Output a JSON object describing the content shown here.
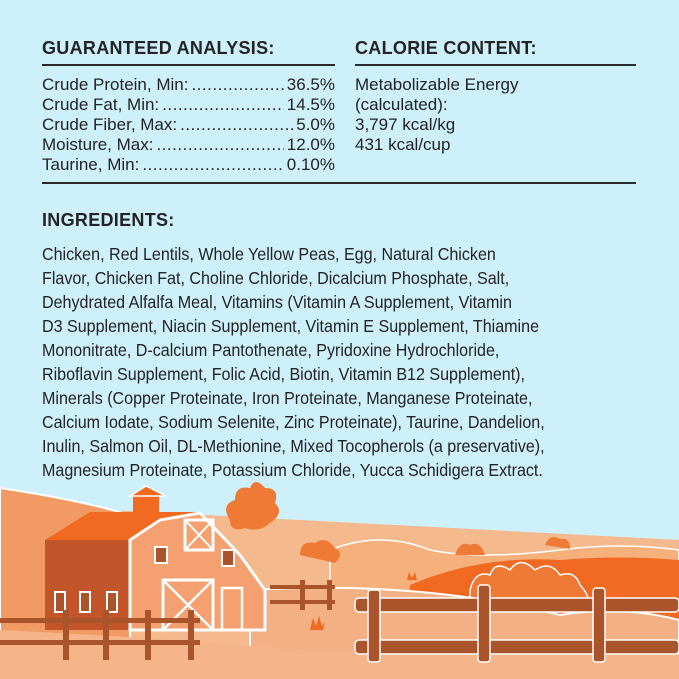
{
  "guaranteed_analysis": {
    "title": "GUARANTEED ANALYSIS:",
    "rows": [
      {
        "label": "Crude Protein, Min:",
        "value": "36.5%"
      },
      {
        "label": "Crude Fat, Min:",
        "value": "14.5%"
      },
      {
        "label": "Crude Fiber, Max:",
        "value": "5.0%"
      },
      {
        "label": "Moisture, Max:",
        "value": "12.0%"
      },
      {
        "label": "Taurine, Min:",
        "value": "0.10%"
      }
    ]
  },
  "calorie_content": {
    "title": "CALORIE CONTENT:",
    "lines": [
      "Metabolizable Energy",
      "(calculated):",
      "3,797 kcal/kg",
      "431 kcal/cup"
    ]
  },
  "ingredients": {
    "title": "INGREDIENTS:",
    "lines": [
      "Chicken, Red Lentils, Whole Yellow Peas, Egg, Natural Chicken",
      "Flavor, Chicken Fat, Choline Chloride, Dicalcium Phosphate, Salt,",
      "Dehydrated Alfalfa Meal, Vitamins (Vitamin A Supplement, Vitamin",
      "D3 Supplement, Niacin Supplement, Vitamin E Supplement, Thiamine",
      "Mononitrate, D-calcium Pantothenate, Pyridoxine Hydrochloride,",
      "Riboflavin Supplement, Folic Acid, Biotin, Vitamin B12 Supplement),",
      "Minerals (Copper Proteinate, Iron Proteinate, Manganese Proteinate,",
      "Calcium Iodate, Sodium Selenite, Zinc Proteinate), Taurine, Dandelion,",
      "Inulin, Salmon Oil, DL-Methionine, Mixed Tocopherols (a preservative),",
      "Magnesium Proteinate, Potassium Chloride, Yucca Schidigera Extract."
    ]
  },
  "colors": {
    "background": "#cdf0fb",
    "text": "#232323",
    "orange": "#f26a21",
    "brown": "#a9542a",
    "sand": "#f4b98c"
  }
}
